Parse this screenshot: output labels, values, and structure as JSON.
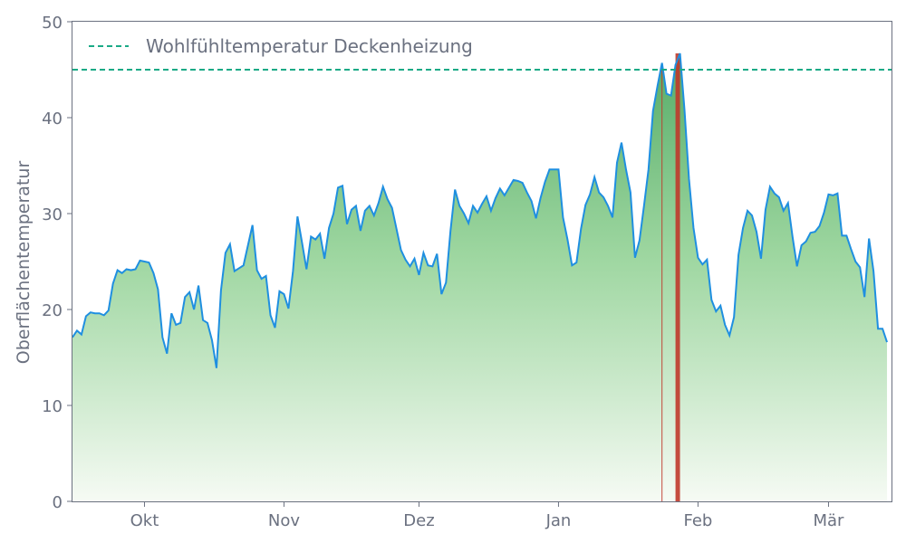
{
  "chart_data": {
    "type": "area",
    "title": "",
    "xlabel": "",
    "ylabel": "Oberflächentemperatur",
    "ylim": [
      0,
      50
    ],
    "yticks": [
      0,
      10,
      20,
      30,
      40,
      50
    ],
    "x_start": "2023-09-15",
    "x_end": "2024-03-15",
    "month_ticks": [
      {
        "label": "Okt",
        "date": "2023-10-01"
      },
      {
        "label": "Nov",
        "date": "2023-11-01"
      },
      {
        "label": "Dez",
        "date": "2023-12-01"
      },
      {
        "label": "Jan",
        "date": "2024-01-01"
      },
      {
        "label": "Feb",
        "date": "2024-02-01"
      },
      {
        "label": "Mär",
        "date": "2024-03-01"
      }
    ],
    "threshold": {
      "label": "Wohlfühltemperatur Deckenheizung",
      "value": 45,
      "color": "#1aaa86"
    },
    "series": [
      {
        "line_color": "#1f8fe0",
        "fill_top_color": "#4aa65e",
        "fill_bottom_color": "#f5faf3",
        "points": [
          [
            "2023-09-15",
            17.1
          ],
          [
            "2023-09-16",
            17.8
          ],
          [
            "2023-09-17",
            17.4
          ],
          [
            "2023-09-18",
            19.3
          ],
          [
            "2023-09-19",
            19.7
          ],
          [
            "2023-09-20",
            19.6
          ],
          [
            "2023-09-21",
            19.6
          ],
          [
            "2023-09-22",
            19.4
          ],
          [
            "2023-09-23",
            19.9
          ],
          [
            "2023-09-24",
            22.7
          ],
          [
            "2023-09-25",
            24.1
          ],
          [
            "2023-09-26",
            23.8
          ],
          [
            "2023-09-27",
            24.2
          ],
          [
            "2023-09-28",
            24.1
          ],
          [
            "2023-09-29",
            24.2
          ],
          [
            "2023-09-30",
            25.1
          ],
          [
            "2023-10-01",
            25.0
          ],
          [
            "2023-10-02",
            24.9
          ],
          [
            "2023-10-03",
            23.8
          ],
          [
            "2023-10-04",
            22.1
          ],
          [
            "2023-10-05",
            17.1
          ],
          [
            "2023-10-06",
            15.4
          ],
          [
            "2023-10-07",
            19.6
          ],
          [
            "2023-10-08",
            18.4
          ],
          [
            "2023-10-09",
            18.6
          ],
          [
            "2023-10-10",
            21.3
          ],
          [
            "2023-10-11",
            21.8
          ],
          [
            "2023-10-12",
            20.0
          ],
          [
            "2023-10-13",
            22.5
          ],
          [
            "2023-10-14",
            18.9
          ],
          [
            "2023-10-15",
            18.6
          ],
          [
            "2023-10-16",
            16.8
          ],
          [
            "2023-10-17",
            13.9
          ],
          [
            "2023-10-18",
            22.0
          ],
          [
            "2023-10-19",
            25.9
          ],
          [
            "2023-10-20",
            26.8
          ],
          [
            "2023-10-21",
            24.0
          ],
          [
            "2023-10-22",
            24.3
          ],
          [
            "2023-10-23",
            24.6
          ],
          [
            "2023-10-24",
            26.7
          ],
          [
            "2023-10-25",
            28.8
          ],
          [
            "2023-10-26",
            24.1
          ],
          [
            "2023-10-27",
            23.2
          ],
          [
            "2023-10-28",
            23.5
          ],
          [
            "2023-10-29",
            19.4
          ],
          [
            "2023-10-30",
            18.1
          ],
          [
            "2023-10-31",
            21.9
          ],
          [
            "2023-11-01",
            21.6
          ],
          [
            "2023-11-02",
            20.1
          ],
          [
            "2023-11-03",
            24.0
          ],
          [
            "2023-11-04",
            29.7
          ],
          [
            "2023-11-05",
            27.0
          ],
          [
            "2023-11-06",
            24.2
          ],
          [
            "2023-11-07",
            27.6
          ],
          [
            "2023-11-08",
            27.3
          ],
          [
            "2023-11-09",
            27.9
          ],
          [
            "2023-11-10",
            25.3
          ],
          [
            "2023-11-11",
            28.5
          ],
          [
            "2023-11-12",
            30.0
          ],
          [
            "2023-11-13",
            32.7
          ],
          [
            "2023-11-14",
            32.9
          ],
          [
            "2023-11-15",
            28.9
          ],
          [
            "2023-11-16",
            30.4
          ],
          [
            "2023-11-17",
            30.8
          ],
          [
            "2023-11-18",
            28.2
          ],
          [
            "2023-11-19",
            30.3
          ],
          [
            "2023-11-20",
            30.8
          ],
          [
            "2023-11-21",
            29.8
          ],
          [
            "2023-11-22",
            31.1
          ],
          [
            "2023-11-23",
            32.8
          ],
          [
            "2023-11-24",
            31.5
          ],
          [
            "2023-11-25",
            30.6
          ],
          [
            "2023-11-26",
            28.4
          ],
          [
            "2023-11-27",
            26.2
          ],
          [
            "2023-11-28",
            25.2
          ],
          [
            "2023-11-29",
            24.5
          ],
          [
            "2023-11-30",
            25.3
          ],
          [
            "2023-12-01",
            23.6
          ],
          [
            "2023-12-02",
            25.9
          ],
          [
            "2023-12-03",
            24.6
          ],
          [
            "2023-12-04",
            24.5
          ],
          [
            "2023-12-05",
            25.8
          ],
          [
            "2023-12-06",
            21.6
          ],
          [
            "2023-12-07",
            22.8
          ],
          [
            "2023-12-08",
            28.2
          ],
          [
            "2023-12-09",
            32.5
          ],
          [
            "2023-12-10",
            30.8
          ],
          [
            "2023-12-11",
            30.0
          ],
          [
            "2023-12-12",
            29.0
          ],
          [
            "2023-12-13",
            30.8
          ],
          [
            "2023-12-14",
            30.1
          ],
          [
            "2023-12-15",
            31.0
          ],
          [
            "2023-12-16",
            31.8
          ],
          [
            "2023-12-17",
            30.3
          ],
          [
            "2023-12-18",
            31.6
          ],
          [
            "2023-12-19",
            32.6
          ],
          [
            "2023-12-20",
            31.9
          ],
          [
            "2023-12-21",
            32.7
          ],
          [
            "2023-12-22",
            33.5
          ],
          [
            "2023-12-23",
            33.4
          ],
          [
            "2023-12-24",
            33.2
          ],
          [
            "2023-12-25",
            32.2
          ],
          [
            "2023-12-26",
            31.3
          ],
          [
            "2023-12-27",
            29.5
          ],
          [
            "2023-12-28",
            31.6
          ],
          [
            "2023-12-29",
            33.3
          ],
          [
            "2023-12-30",
            34.6
          ],
          [
            "2023-12-31",
            34.6
          ],
          [
            "2024-01-01",
            34.6
          ],
          [
            "2024-01-02",
            29.6
          ],
          [
            "2024-01-03",
            27.3
          ],
          [
            "2024-01-04",
            24.6
          ],
          [
            "2024-01-05",
            24.9
          ],
          [
            "2024-01-06",
            28.4
          ],
          [
            "2024-01-07",
            30.9
          ],
          [
            "2024-01-08",
            32.0
          ],
          [
            "2024-01-09",
            33.8
          ],
          [
            "2024-01-10",
            32.2
          ],
          [
            "2024-01-11",
            31.7
          ],
          [
            "2024-01-12",
            30.8
          ],
          [
            "2024-01-13",
            29.6
          ],
          [
            "2024-01-14",
            35.3
          ],
          [
            "2024-01-15",
            37.4
          ],
          [
            "2024-01-16",
            34.6
          ],
          [
            "2024-01-17",
            32.2
          ],
          [
            "2024-01-18",
            25.4
          ],
          [
            "2024-01-19",
            27.2
          ],
          [
            "2024-01-20",
            30.8
          ],
          [
            "2024-01-21",
            34.6
          ],
          [
            "2024-01-22",
            40.7
          ],
          [
            "2024-01-23",
            43.3
          ],
          [
            "2024-01-24",
            45.7
          ],
          [
            "2024-01-25",
            42.5
          ],
          [
            "2024-01-26",
            42.3
          ],
          [
            "2024-01-27",
            45.5
          ],
          [
            "2024-01-28",
            46.7
          ],
          [
            "2024-01-29",
            40.8
          ],
          [
            "2024-01-30",
            33.6
          ],
          [
            "2024-01-31",
            28.5
          ],
          [
            "2024-02-01",
            25.4
          ],
          [
            "2024-02-02",
            24.7
          ],
          [
            "2024-02-03",
            25.2
          ],
          [
            "2024-02-04",
            21.0
          ],
          [
            "2024-02-05",
            19.8
          ],
          [
            "2024-02-06",
            20.4
          ],
          [
            "2024-02-07",
            18.4
          ],
          [
            "2024-02-08",
            17.3
          ],
          [
            "2024-02-09",
            19.2
          ],
          [
            "2024-02-10",
            25.7
          ],
          [
            "2024-02-11",
            28.5
          ],
          [
            "2024-02-12",
            30.3
          ],
          [
            "2024-02-13",
            29.8
          ],
          [
            "2024-02-14",
            28.1
          ],
          [
            "2024-02-15",
            25.3
          ],
          [
            "2024-02-16",
            30.4
          ],
          [
            "2024-02-17",
            32.8
          ],
          [
            "2024-02-18",
            32.1
          ],
          [
            "2024-02-19",
            31.7
          ],
          [
            "2024-02-20",
            30.3
          ],
          [
            "2024-02-21",
            31.1
          ],
          [
            "2024-02-22",
            27.6
          ],
          [
            "2024-02-23",
            24.5
          ],
          [
            "2024-02-24",
            26.7
          ],
          [
            "2024-02-25",
            27.1
          ],
          [
            "2024-02-26",
            28.0
          ],
          [
            "2024-02-27",
            28.1
          ],
          [
            "2024-02-28",
            28.7
          ],
          [
            "2024-02-29",
            30.1
          ],
          [
            "2024-03-01",
            32.0
          ],
          [
            "2024-03-02",
            31.9
          ],
          [
            "2024-03-03",
            32.1
          ],
          [
            "2024-03-04",
            27.7
          ],
          [
            "2024-03-05",
            27.7
          ],
          [
            "2024-03-06",
            26.3
          ],
          [
            "2024-03-07",
            25.0
          ],
          [
            "2024-03-08",
            24.4
          ],
          [
            "2024-03-09",
            21.3
          ],
          [
            "2024-03-10",
            27.4
          ],
          [
            "2024-03-11",
            24.0
          ],
          [
            "2024-03-12",
            18.0
          ],
          [
            "2024-03-13",
            18.0
          ],
          [
            "2024-03-14",
            16.6
          ]
        ]
      }
    ],
    "exceedances": {
      "color": "#c0392b",
      "periods": [
        {
          "start": "2024-01-24",
          "end": "2024-01-24",
          "peak": 45.7
        },
        {
          "start": "2024-01-27",
          "end": "2024-01-28",
          "peak": 46.7
        }
      ]
    },
    "grid": false,
    "legend_position": "top-left"
  }
}
